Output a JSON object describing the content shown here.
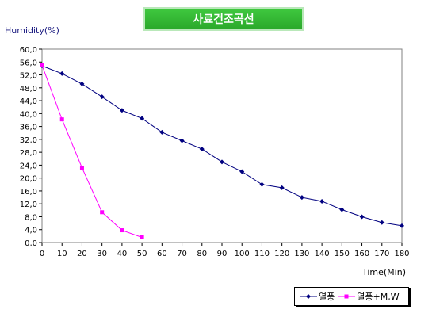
{
  "chart_data": {
    "type": "line",
    "title": "사료건조곡선",
    "ylabel": "Humidity(%)",
    "xlabel": "Time(Min)",
    "xlim": [
      0,
      180
    ],
    "ylim": [
      0,
      60
    ],
    "x_ticks": [
      "0",
      "10",
      "20",
      "30",
      "40",
      "50",
      "60",
      "70",
      "80",
      "90",
      "100",
      "110",
      "120",
      "130",
      "140",
      "150",
      "160",
      "170",
      "180"
    ],
    "y_ticks": [
      "0,0",
      "4,0",
      "8,0",
      "12,0",
      "16,0",
      "20,0",
      "24,0",
      "28,0",
      "32,0",
      "36,0",
      "40,0",
      "44,0",
      "48,0",
      "52,0",
      "56,0",
      "60,0"
    ],
    "legend_position": "bottom-right",
    "series": [
      {
        "name": "열풍",
        "color": "#000080",
        "marker": "diamond",
        "x": [
          0,
          10,
          20,
          30,
          40,
          50,
          60,
          70,
          80,
          90,
          100,
          110,
          120,
          130,
          140,
          150,
          160,
          170,
          180
        ],
        "values": [
          54.8,
          52.4,
          49.2,
          45.2,
          41.0,
          38.5,
          34.2,
          31.6,
          29.0,
          25.0,
          22.0,
          18.0,
          17.0,
          14.0,
          12.8,
          10.2,
          8.0,
          6.2,
          5.2
        ]
      },
      {
        "name": "열풍+M,W",
        "color": "#ff00ff",
        "marker": "square",
        "x": [
          0,
          10,
          20,
          30,
          40,
          50
        ],
        "values": [
          55.0,
          38.2,
          23.2,
          9.4,
          3.8,
          1.6
        ]
      }
    ]
  }
}
